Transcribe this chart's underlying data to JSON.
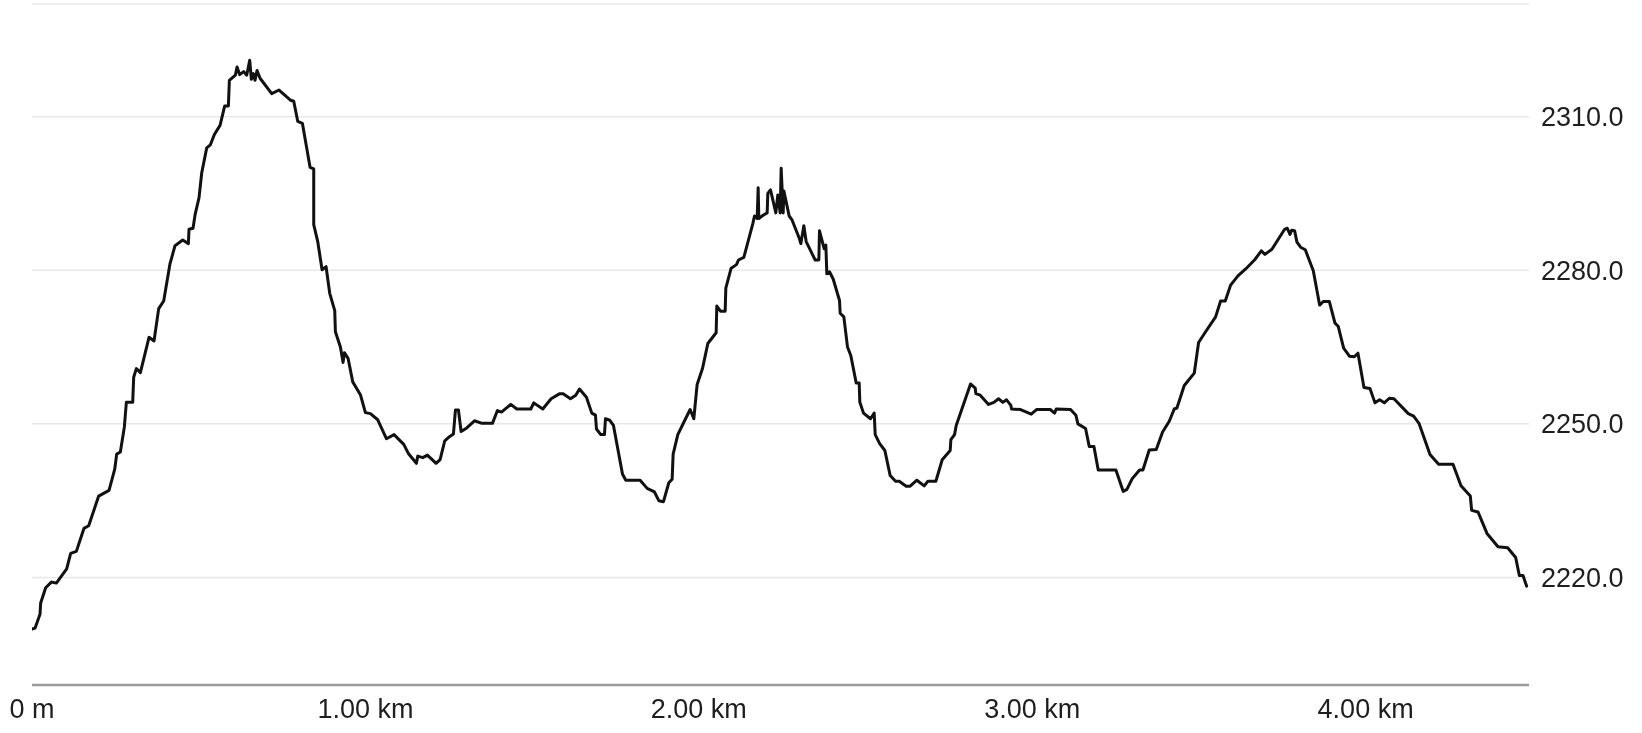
{
  "chart_data": {
    "type": "line",
    "color": "#111111",
    "line_style": "solid",
    "grid": "y",
    "xlim": [
      0,
      4.49
    ],
    "ylim": [
      2199,
      2332
    ],
    "xticks": [
      {
        "value": 0,
        "label": "0 m"
      },
      {
        "value": 1,
        "label": "1.00 km"
      },
      {
        "value": 2,
        "label": "2.00 km"
      },
      {
        "value": 3,
        "label": "3.00 km"
      },
      {
        "value": 4,
        "label": "4.00 km"
      }
    ],
    "yticks": [
      {
        "value": 2220,
        "label": "2220.0"
      },
      {
        "value": 2250,
        "label": "2250.0"
      },
      {
        "value": 2280,
        "label": "2280.0"
      },
      {
        "value": 2310,
        "label": "2310.0"
      }
    ],
    "x": [
      0,
      0.009,
      0.024,
      0.026,
      0.041,
      0.058,
      0.073,
      0.104,
      0.116,
      0.133,
      0.156,
      0.17,
      0.2,
      0.231,
      0.248,
      0.254,
      0.265,
      0.277,
      0.283,
      0.302,
      0.305,
      0.313,
      0.325,
      0.351,
      0.366,
      0.38,
      0.395,
      0.414,
      0.429,
      0.452,
      0.469,
      0.471,
      0.483,
      0.489,
      0.501,
      0.509,
      0.524,
      0.535,
      0.547,
      0.564,
      0.578,
      0.589,
      0.592,
      0.61,
      0.615,
      0.623,
      0.635,
      0.644,
      0.653,
      0.658,
      0.664,
      0.669,
      0.675,
      0.684,
      0.719,
      0.741,
      0.776,
      0.785,
      0.797,
      0.811,
      0.834,
      0.845,
      0.845,
      0.857,
      0.87,
      0.882,
      0.893,
      0.908,
      0.91,
      0.925,
      0.933,
      0.937,
      0.948,
      0.962,
      0.985,
      1.0,
      1.015,
      1.037,
      1.063,
      1.086,
      1.115,
      1.13,
      1.153,
      1.157,
      1.172,
      1.186,
      1.212,
      1.224,
      1.238,
      1.252,
      1.264,
      1.27,
      1.279,
      1.287,
      1.304,
      1.327,
      1.35,
      1.381,
      1.396,
      1.408,
      1.436,
      1.454,
      1.496,
      1.505,
      1.532,
      1.557,
      1.583,
      1.593,
      1.615,
      1.631,
      1.642,
      1.663,
      1.679,
      1.69,
      1.693,
      1.706,
      1.717,
      1.72,
      1.733,
      1.744,
      1.771,
      1.781,
      1.824,
      1.845,
      1.867,
      1.88,
      1.894,
      1.91,
      1.92,
      1.923,
      1.937,
      1.958,
      1.974,
      1.985,
      1.995,
      2.011,
      2.027,
      2.052,
      2.054,
      2.065,
      2.079,
      2.081,
      2.097,
      2.113,
      2.119,
      2.135,
      2.162,
      2.167,
      2.175,
      2.178,
      2.18,
      2.194,
      2.205,
      2.207,
      2.215,
      2.231,
      2.237,
      2.244,
      2.247,
      2.253,
      2.255,
      2.271,
      2.279,
      2.301,
      2.306,
      2.315,
      2.322,
      2.349,
      2.36,
      2.362,
      2.376,
      2.381,
      2.384,
      2.392,
      2.403,
      2.422,
      2.424,
      2.435,
      2.446,
      2.456,
      2.472,
      2.481,
      2.483,
      2.494,
      2.515,
      2.526,
      2.529,
      2.542,
      2.558,
      2.574,
      2.59,
      2.601,
      2.622,
      2.633,
      2.654,
      2.676,
      2.687,
      2.711,
      2.73,
      2.754,
      2.756,
      2.767,
      2.772,
      2.815,
      2.829,
      2.831,
      2.844,
      2.869,
      2.885,
      2.899,
      2.912,
      2.923,
      2.936,
      2.938,
      2.965,
      2.997,
      3.013,
      3.054,
      3.067,
      3.072,
      3.115,
      3.131,
      3.137,
      3.16,
      3.171,
      3.185,
      3.198,
      3.251,
      3.273,
      3.284,
      3.3,
      3.322,
      3.332,
      3.351,
      3.372,
      3.391,
      3.411,
      3.426,
      3.434,
      3.456,
      3.486,
      3.499,
      3.52,
      3.55,
      3.565,
      3.579,
      3.595,
      3.617,
      3.641,
      3.668,
      3.687,
      3.698,
      3.719,
      3.757,
      3.765,
      3.773,
      3.778,
      3.787,
      3.794,
      3.805,
      3.819,
      3.843,
      3.862,
      3.873,
      3.891,
      3.908,
      3.918,
      3.934,
      3.952,
      3.966,
      3.977,
      3.995,
      4.013,
      4.028,
      4.042,
      4.056,
      4.071,
      4.085,
      4.128,
      4.144,
      4.16,
      4.193,
      4.219,
      4.262,
      4.286,
      4.314,
      4.318,
      4.337,
      4.364,
      4.397,
      4.426,
      4.45,
      4.461,
      4.472,
      4.483
    ],
    "values": [
      2209.9,
      2210.1,
      2212.8,
      2215.0,
      2218.0,
      2219.1,
      2218.9,
      2221.7,
      2224.7,
      2225.1,
      2229.6,
      2230.1,
      2235.9,
      2237.0,
      2241.1,
      2244.1,
      2244.5,
      2249.4,
      2254.2,
      2254.2,
      2259.1,
      2260.8,
      2260.0,
      2266.9,
      2266.2,
      2272.5,
      2274.0,
      2281.3,
      2284.8,
      2285.9,
      2285.2,
      2288.0,
      2288.2,
      2290.8,
      2294.2,
      2299.0,
      2303.9,
      2304.5,
      2306.5,
      2308.3,
      2312.1,
      2312.1,
      2317.1,
      2318.1,
      2319.7,
      2318.2,
      2318.8,
      2318.1,
      2321.0,
      2317.3,
      2318.4,
      2317.1,
      2319.0,
      2317.5,
      2314.5,
      2315.2,
      2313.2,
      2313.0,
      2309.1,
      2308.7,
      2300.1,
      2299.8,
      2288.9,
      2285.6,
      2280.1,
      2280.7,
      2275.5,
      2272.1,
      2268.0,
      2265.0,
      2262.0,
      2263.9,
      2262.8,
      2258.2,
      2255.7,
      2252.2,
      2252.0,
      2250.8,
      2247.1,
      2247.9,
      2246.0,
      2244.1,
      2242.3,
      2243.7,
      2243.4,
      2243.9,
      2242.3,
      2243.0,
      2246.7,
      2247.5,
      2248.0,
      2252.7,
      2252.7,
      2248.5,
      2249.2,
      2250.6,
      2250.1,
      2250.1,
      2252.6,
      2252.3,
      2253.8,
      2252.9,
      2252.9,
      2254.1,
      2252.9,
      2254.9,
      2255.9,
      2255.9,
      2254.9,
      2255.6,
      2256.8,
      2255.2,
      2252.1,
      2251.7,
      2249.0,
      2247.9,
      2247.9,
      2251.0,
      2250.7,
      2249.7,
      2240.2,
      2239.0,
      2239.0,
      2237.4,
      2236.7,
      2235.0,
      2234.8,
      2238.5,
      2239.2,
      2244.1,
      2247.9,
      2250.7,
      2252.8,
      2251.0,
      2257.7,
      2260.8,
      2265.7,
      2267.8,
      2273.0,
      2272.0,
      2272.0,
      2276.5,
      2280.4,
      2281.1,
      2282.0,
      2282.5,
      2289.1,
      2290.6,
      2290.1,
      2296.1,
      2290.1,
      2290.8,
      2291.2,
      2295.0,
      2295.7,
      2291.2,
      2294.7,
      2291.2,
      2299.9,
      2291.2,
      2295.5,
      2290.6,
      2289.9,
      2286.3,
      2285.2,
      2288.7,
      2285.6,
      2282.0,
      2282.0,
      2287.7,
      2284.2,
      2284.9,
      2279.3,
      2279.7,
      2278.3,
      2274.1,
      2271.6,
      2270.9,
      2265.0,
      2263.3,
      2258.0,
      2258.0,
      2254.2,
      2252.1,
      2251.0,
      2252.1,
      2247.9,
      2246.2,
      2244.8,
      2239.9,
      2238.8,
      2238.8,
      2237.8,
      2237.8,
      2239.0,
      2237.9,
      2238.8,
      2238.8,
      2243.0,
      2244.8,
      2246.9,
      2247.9,
      2249.7,
      2257.8,
      2257.0,
      2255.9,
      2255.6,
      2253.8,
      2254.2,
      2254.9,
      2254.2,
      2254.7,
      2253.6,
      2252.9,
      2252.8,
      2251.9,
      2252.8,
      2252.8,
      2252.1,
      2252.9,
      2252.8,
      2251.7,
      2250.0,
      2249.1,
      2245.6,
      2245.6,
      2241.0,
      2241.0,
      2236.8,
      2237.2,
      2239.3,
      2241.0,
      2241.0,
      2244.9,
      2245.0,
      2248.4,
      2250.5,
      2252.9,
      2253.1,
      2257.5,
      2259.9,
      2265.9,
      2268.0,
      2270.9,
      2274.0,
      2274.0,
      2277.1,
      2278.9,
      2280.3,
      2282.1,
      2283.8,
      2283.1,
      2284.1,
      2288.0,
      2288.2,
      2287.0,
      2287.8,
      2287.7,
      2285.5,
      2284.5,
      2284.0,
      2279.9,
      2273.2,
      2273.9,
      2273.9,
      2269.7,
      2269.0,
      2264.8,
      2263.2,
      2263.1,
      2263.8,
      2257.1,
      2256.9,
      2254.1,
      2254.7,
      2254.1,
      2255.0,
      2254.9,
      2252.0,
      2251.5,
      2250.1,
      2244.0,
      2242.1,
      2242.1,
      2237.9,
      2235.9,
      2233.1,
      2232.8,
      2228.6,
      2226.0,
      2225.8,
      2223.9,
      2220.4,
      2220.4,
      2218.3
    ]
  }
}
